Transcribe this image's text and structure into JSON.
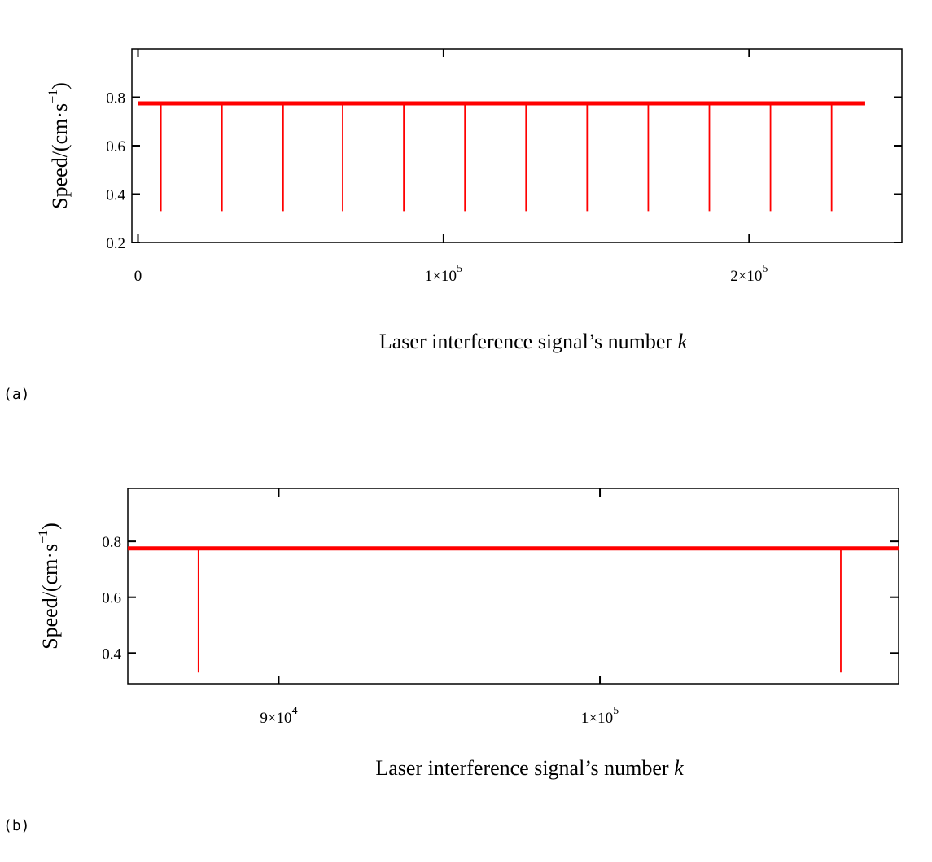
{
  "chart_data": [
    {
      "type": "line",
      "panel_label": "(a)",
      "xlabel": "Laser interference signal’s number ",
      "xlabel_var": "k",
      "ylabel": "Speed/(cm·s",
      "ylabel_exp": "−1",
      "ylabel_close": ")",
      "xlim": [
        -2000,
        250000
      ],
      "ylim": [
        0.2,
        1.0
      ],
      "xticks": [
        {
          "value": 0,
          "mantissa": "0",
          "exp": ""
        },
        {
          "value": 100000,
          "mantissa": "1×10",
          "exp": "5"
        },
        {
          "value": 200000,
          "mantissa": "2×10",
          "exp": "5"
        }
      ],
      "yticks": [
        {
          "value": 0.2,
          "label": "0.2"
        },
        {
          "value": 0.4,
          "label": "0.4"
        },
        {
          "value": 0.6,
          "label": "0.6"
        },
        {
          "value": 0.8,
          "label": "0.8"
        }
      ],
      "grid": false,
      "series": [
        {
          "color": "#ff0000",
          "baseline": 0.775,
          "x_range": [
            0,
            238000
          ],
          "dip_min": 0.33,
          "dips_x": [
            7500,
            27500,
            47500,
            67000,
            87000,
            107000,
            127000,
            147000,
            167000,
            187000,
            207000,
            227000
          ]
        }
      ]
    },
    {
      "type": "line",
      "panel_label": "(b)",
      "xlabel": "Laser interference signal’s number ",
      "xlabel_var": "k",
      "ylabel": "Speed/(cm·s",
      "ylabel_exp": "−1",
      "ylabel_close": ")",
      "xlim": [
        85300,
        109300
      ],
      "ylim": [
        0.29,
        0.99
      ],
      "xticks": [
        {
          "value": 90000,
          "mantissa": "9×10",
          "exp": "4"
        },
        {
          "value": 100000,
          "mantissa": "1×10",
          "exp": "5"
        }
      ],
      "yticks": [
        {
          "value": 0.4,
          "label": "0.4"
        },
        {
          "value": 0.6,
          "label": "0.6"
        },
        {
          "value": 0.8,
          "label": "0.8"
        }
      ],
      "grid": false,
      "series": [
        {
          "color": "#ff0000",
          "baseline": 0.775,
          "x_range": [
            85300,
            109300
          ],
          "dip_min": 0.33,
          "dips_x": [
            87500,
            107500
          ]
        }
      ]
    }
  ]
}
